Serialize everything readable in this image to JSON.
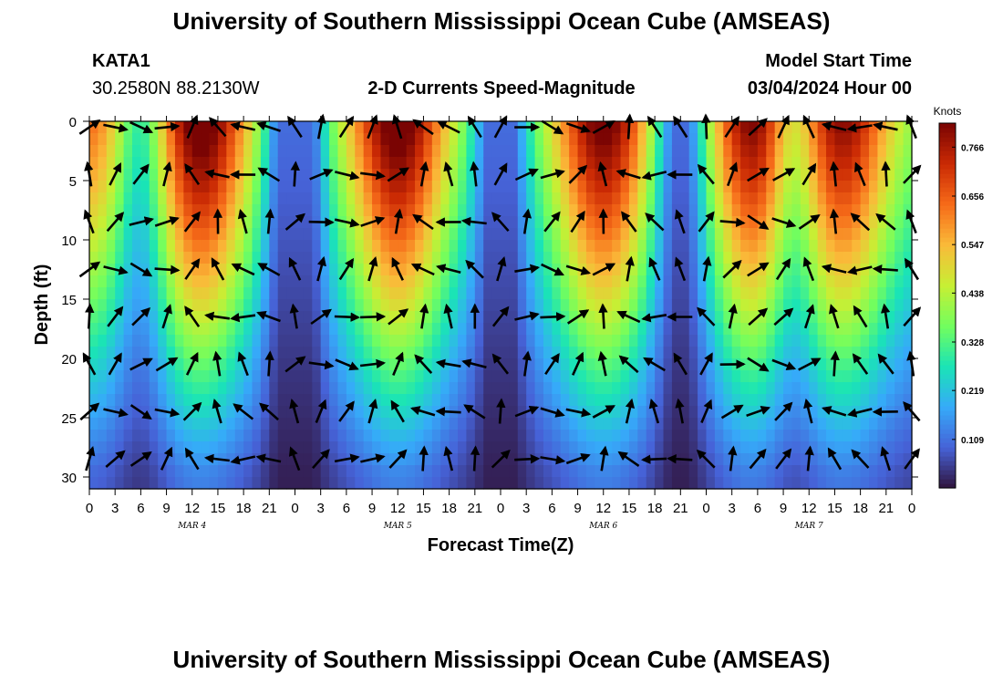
{
  "header": {
    "title": "University of Southern Mississippi Ocean Cube (AMSEAS)",
    "station": "KATA1",
    "coords": "30.2580N  88.2130W",
    "product": "2-D Currents Speed-Magnitude",
    "model_start_label": "Model Start Time",
    "model_start_value": "03/04/2024 Hour 00"
  },
  "footer": {
    "title": "University of Southern Mississippi Ocean Cube (AMSEAS)"
  },
  "chart_data": {
    "type": "heatmap",
    "title": "2-D Currents Speed-Magnitude",
    "xlabel": "Forecast Time(Z)",
    "ylabel": "Depth (ft)",
    "x_ticks": [
      "0",
      "3",
      "6",
      "9",
      "12",
      "15",
      "18",
      "21",
      "0",
      "3",
      "6",
      "9",
      "12",
      "15",
      "18",
      "21",
      "0",
      "3",
      "6",
      "9",
      "12",
      "15",
      "18",
      "21",
      "0",
      "3",
      "6",
      "9",
      "12",
      "15",
      "18",
      "21",
      "0"
    ],
    "x_range_hours": [
      0,
      96
    ],
    "date_labels": [
      {
        "label": "MAR 4",
        "hour": 12
      },
      {
        "label": "MAR 5",
        "hour": 36
      },
      {
        "label": "MAR 6",
        "hour": 60
      },
      {
        "label": "MAR 7",
        "hour": 84
      }
    ],
    "y_ticks": [
      "0",
      "5",
      "10",
      "15",
      "20",
      "25",
      "30"
    ],
    "y_range_ft": [
      0,
      31
    ],
    "colorbar": {
      "unit": "Knots",
      "range": [
        0.0,
        0.82
      ],
      "tick_values": [
        0.109,
        0.219,
        0.328,
        0.438,
        0.547,
        0.656,
        0.766
      ],
      "tick_labels": [
        "0.109",
        "0.219",
        "0.328",
        "0.438",
        "0.547",
        "0.656",
        "0.766"
      ],
      "colors": [
        "#30123b",
        "#4662d7",
        "#36aaf9",
        "#1ae4b6",
        "#72fe5e",
        "#c7ef34",
        "#faba39",
        "#f66b19",
        "#ca2a04",
        "#7a0403"
      ]
    },
    "depth_profile": [
      0.8,
      0.7,
      0.58,
      0.46,
      0.33,
      0.22,
      0.12
    ],
    "depth_profile_depths_ft": [
      0,
      5,
      10,
      15,
      20,
      25,
      30
    ],
    "time_peaks": [
      {
        "hour": 0,
        "strength": 0.55
      },
      {
        "hour": 13,
        "strength": 1.0
      },
      {
        "hour": 36,
        "strength": 1.0
      },
      {
        "hour": 60,
        "strength": 0.95
      },
      {
        "hour": 78,
        "strength": 0.95
      },
      {
        "hour": 88,
        "strength": 0.85
      }
    ],
    "time_lows": [
      {
        "hour": 6,
        "strength": 0.5
      },
      {
        "hour": 24,
        "strength": 0.9
      },
      {
        "hour": 48,
        "strength": 0.7
      },
      {
        "hour": 69,
        "strength": 0.7
      },
      {
        "hour": 82,
        "strength": 0.6
      }
    ],
    "arrow_depths_ft": [
      0,
      4,
      8,
      12,
      16,
      20,
      24,
      28
    ],
    "arrow_spacing_hours": 3
  }
}
